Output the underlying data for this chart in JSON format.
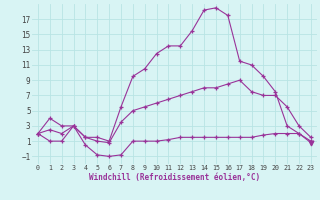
{
  "x": [
    0,
    1,
    2,
    3,
    4,
    5,
    6,
    7,
    8,
    9,
    10,
    11,
    12,
    13,
    14,
    15,
    16,
    17,
    18,
    19,
    20,
    21,
    22,
    23
  ],
  "max_vals": [
    2,
    4,
    3,
    3,
    1.5,
    1.5,
    1.0,
    5.5,
    9.5,
    10.5,
    12.5,
    13.5,
    13.5,
    15.5,
    18.2,
    18.5,
    17.5,
    11.5,
    11.0,
    9.5,
    7.5,
    3.0,
    2.0,
    1.0
  ],
  "min_vals": [
    2,
    1,
    1,
    3,
    0.5,
    -0.8,
    -1.0,
    -0.8,
    1.0,
    1.0,
    1.0,
    1.2,
    1.5,
    1.5,
    1.5,
    1.5,
    1.5,
    1.5,
    1.5,
    1.8,
    2.0,
    2.0,
    2.0,
    0.8
  ],
  "avg_vals": [
    2,
    2.5,
    2,
    3,
    1.5,
    1.0,
    0.8,
    3.5,
    5.0,
    5.5,
    6.0,
    6.5,
    7.0,
    7.5,
    8.0,
    8.0,
    8.5,
    9.0,
    7.5,
    7.0,
    7.0,
    5.5,
    3.0,
    1.5
  ],
  "line_color": "#993399",
  "bg_color": "#d8f4f4",
  "grid_color": "#b8e4e4",
  "xlabel": "Windchill (Refroidissement éolien,°C)",
  "ylim": [
    -2.0,
    19.0
  ],
  "xlim": [
    -0.5,
    23.5
  ],
  "yticks": [
    -1,
    1,
    3,
    5,
    7,
    9,
    11,
    13,
    15,
    17
  ],
  "xticks": [
    0,
    1,
    2,
    3,
    4,
    5,
    6,
    7,
    8,
    9,
    10,
    11,
    12,
    13,
    14,
    15,
    16,
    17,
    18,
    19,
    20,
    21,
    22,
    23
  ],
  "figsize": [
    3.2,
    2.0
  ],
  "dpi": 100
}
